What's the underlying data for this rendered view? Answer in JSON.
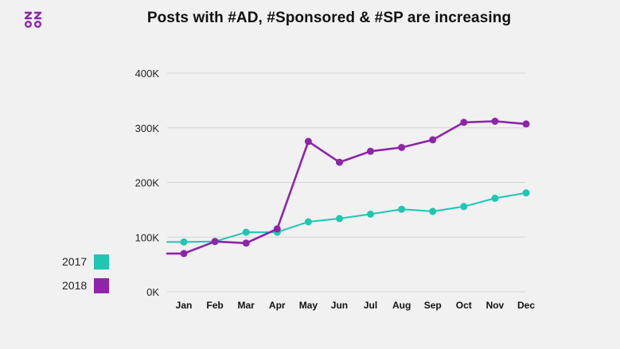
{
  "header": {
    "title": "Posts with #AD, #Sponsored & #SP are increasing",
    "logo_icon": "zz-oo-logo"
  },
  "chart_data": {
    "type": "line",
    "title": "Posts with #AD, #Sponsored & #SP are increasing",
    "xlabel": "",
    "ylabel": "",
    "categories": [
      "Jan",
      "Feb",
      "Mar",
      "Apr",
      "May",
      "Jun",
      "Jul",
      "Aug",
      "Sep",
      "Oct",
      "Nov",
      "Dec"
    ],
    "y_ticks": [
      "0K",
      "100K",
      "200K",
      "300K",
      "400K"
    ],
    "y_tick_values": [
      0,
      100000,
      200000,
      300000,
      400000
    ],
    "ylim": [
      0,
      400000
    ],
    "grid": true,
    "legend_position": "bottom-left",
    "series": [
      {
        "name": "2017",
        "color": "#1dc7b2",
        "values": [
          91000,
          92000,
          109000,
          109000,
          128000,
          134000,
          142000,
          151000,
          147000,
          156000,
          171000,
          181000
        ]
      },
      {
        "name": "2018",
        "color": "#8e24aa",
        "values": [
          70000,
          92000,
          89000,
          115000,
          275000,
          237000,
          257000,
          264000,
          278000,
          310000,
          312000,
          307000
        ]
      }
    ]
  }
}
